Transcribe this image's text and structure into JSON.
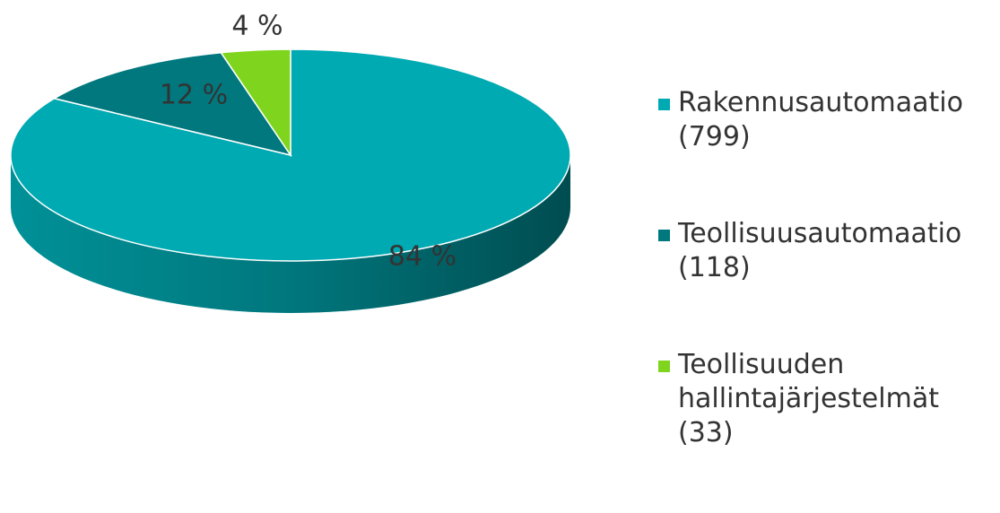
{
  "chart_data": {
    "type": "pie",
    "categories": [
      "Rakennusautomaatio (799)",
      "Teollisuusautomaatio (118)",
      "Teollisuuden hallintajärjestelmät (33)"
    ],
    "values": [
      84,
      12,
      4
    ],
    "value_labels": [
      "84 %",
      "12 %",
      "4 %"
    ],
    "colors": [
      "#00aab2",
      "#00787e",
      "#7fd51e"
    ]
  }
}
